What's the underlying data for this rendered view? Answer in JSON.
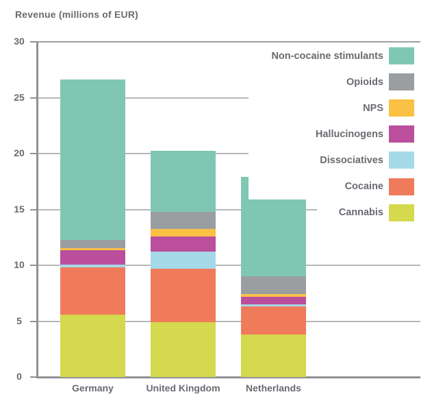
{
  "title": "Revenue (millions of EUR)",
  "colors": {
    "text": "#686b70",
    "gridline": "#b5b7b9",
    "axis": "#8f9194",
    "background": "#ffffff"
  },
  "chart_data": {
    "type": "bar",
    "stacked": true,
    "title": "Revenue (millions of EUR)",
    "categories": [
      "Germany",
      "United Kingdom",
      "Netherlands"
    ],
    "series": [
      {
        "name": "Cannabis",
        "color": "#d4d94d",
        "values": [
          5.6,
          4.9,
          3.8
        ]
      },
      {
        "name": "Cocaine",
        "color": "#ef7b5b",
        "values": [
          4.2,
          4.8,
          2.5
        ]
      },
      {
        "name": "Dissociatives",
        "color": "#a5d9e8",
        "values": [
          0.25,
          1.55,
          0.2
        ]
      },
      {
        "name": "Hallucinogens",
        "color": "#bb4f9d",
        "values": [
          1.3,
          1.35,
          0.7
        ]
      },
      {
        "name": "NPS",
        "color": "#fac144",
        "values": [
          0.2,
          0.65,
          0.25
        ]
      },
      {
        "name": "Opioids",
        "color": "#9b9ea1",
        "values": [
          0.7,
          1.55,
          1.55
        ]
      },
      {
        "name": "Non-cocaine stimulants",
        "color": "#7fc7b2",
        "values": [
          14.4,
          5.45,
          8.9
        ]
      }
    ],
    "bar_totals_estimated": [
      26.65,
      20.25,
      17.9
    ],
    "ylabel": "Revenue (millions of EUR)",
    "ylim": [
      0,
      30
    ],
    "yticks": [
      0,
      5,
      10,
      15,
      20,
      25,
      30
    ],
    "grid": true,
    "legend": {
      "position": "top-right",
      "order_top_to_bottom": [
        "Non-cocaine stimulants",
        "Opioids",
        "NPS",
        "Hallucinogens",
        "Dissociatives",
        "Cocaine",
        "Cannabis"
      ]
    }
  }
}
